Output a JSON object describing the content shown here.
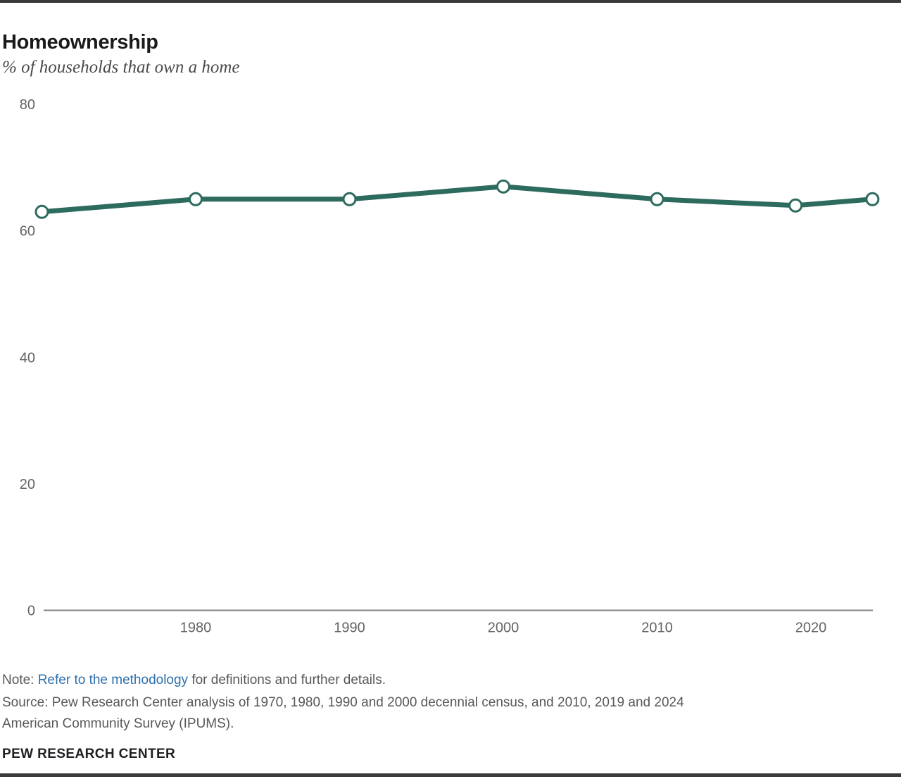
{
  "header": {
    "title": "Homeownership",
    "subtitle": "% of households that own a home"
  },
  "chart_data": {
    "type": "line",
    "title": "Homeownership",
    "subtitle": "% of households that own a home",
    "x": [
      1970,
      1980,
      1990,
      2000,
      2010,
      2019,
      2024
    ],
    "series": [
      {
        "name": "% of households that own a home",
        "values": [
          63,
          65,
          65,
          67,
          65,
          64,
          65
        ]
      }
    ],
    "xticks": [
      1980,
      1990,
      2000,
      2010,
      2020
    ],
    "yticks": [
      0,
      20,
      40,
      60,
      80
    ],
    "xlim": [
      1970,
      2024
    ],
    "ylim": [
      0,
      80
    ],
    "grid": false,
    "legend_position": "none",
    "line_color": "#2d6b5f",
    "marker": "open-circle",
    "marker_fill": "#ffffff",
    "axis_line_color": "#808080"
  },
  "notes": {
    "note_prefix": "Note: ",
    "note_link": "Refer to the methodology",
    "note_suffix": " for definitions and further details.",
    "source_lines": [
      "Source: Pew Research Center analysis of 1970, 1980, 1990 and 2000 decennial census, and 2010, 2019 and 2024",
      "American Community Survey (IPUMS)."
    ]
  },
  "footer": {
    "label": "PEW RESEARCH CENTER"
  },
  "colors": {
    "accent_green": "#2d6b5f",
    "link_blue": "#2e6fad",
    "text_gray": "#58585b",
    "tick_gray": "#646464",
    "border_dark": "#3a3a3a"
  }
}
